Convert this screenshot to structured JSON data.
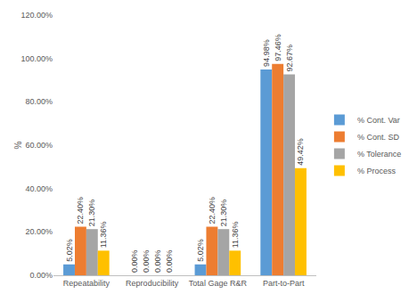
{
  "chart_data": {
    "type": "bar",
    "y_label": "%",
    "categories": [
      "Repeatability",
      "Reproducibility",
      "Total Gage R&R",
      "Part-to-Part"
    ],
    "series": [
      {
        "name": "% Cont. Var",
        "color": "#5b9bd5",
        "values": [
          5.02,
          0,
          5.02,
          94.98
        ],
        "value_labels": [
          "5.02%",
          "0.00%",
          "5.02%",
          "94.98%"
        ]
      },
      {
        "name": "% Cont. SD",
        "color": "#ed7d31",
        "values": [
          22.4,
          0,
          22.4,
          97.46
        ],
        "value_labels": [
          "22.40%",
          "0.00%",
          "22.40%",
          "97.46%"
        ]
      },
      {
        "name": "% Tolerance",
        "color": "#a5a5a5",
        "values": [
          21.3,
          0,
          21.3,
          92.67
        ],
        "value_labels": [
          "21.30%",
          "0.00%",
          "21.30%",
          "92.67%"
        ]
      },
      {
        "name": "% Process",
        "color": "#ffc000",
        "values": [
          11.36,
          0,
          11.36,
          49.42
        ],
        "value_labels": [
          "11.36%",
          "0.00%",
          "11.36%",
          "49.42%"
        ]
      }
    ],
    "ylim": [
      0,
      120
    ],
    "yticks": [
      {
        "value": 0,
        "label": "0.00%"
      },
      {
        "value": 20,
        "label": "20.00%"
      },
      {
        "value": 40,
        "label": "40.00%"
      },
      {
        "value": 60,
        "label": "60.00%"
      },
      {
        "value": 80,
        "label": "80.00%"
      },
      {
        "value": 100,
        "label": "100.00%"
      },
      {
        "value": 120,
        "label": "120.00%"
      }
    ],
    "grid": false,
    "legend": "right",
    "data_labels": true
  }
}
